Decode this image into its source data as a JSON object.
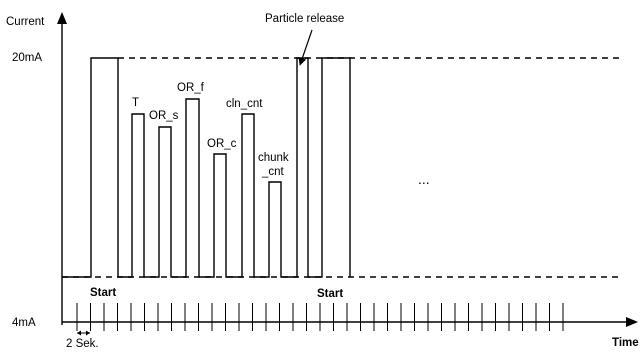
{
  "axes": {
    "y_label": "Current",
    "x_label": "Time",
    "high_level": "20mA",
    "low_level": "4mA",
    "tick_interval_label": "2 Sek."
  },
  "pulse_labels": {
    "T": "T",
    "OR_s": "OR_s",
    "OR_f": "OR_f",
    "OR_c": "OR_c",
    "cln_cnt": "cln_cnt",
    "chunk_line1": "chunk",
    "chunk_line2": "_cnt"
  },
  "annotations": {
    "start_1": "Start",
    "start_2": "Start",
    "particle_release": "Particle release",
    "ellipsis": "..."
  }
}
